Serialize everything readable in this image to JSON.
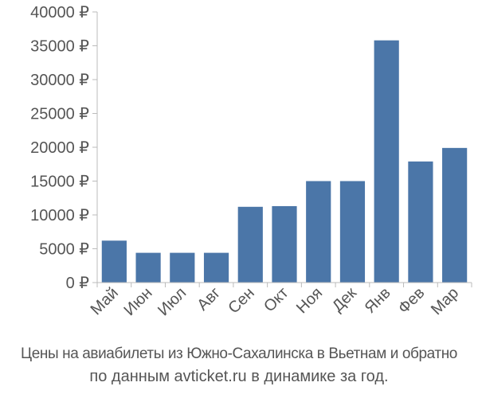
{
  "chart_data": {
    "type": "bar",
    "categories": [
      "Май",
      "Июн",
      "Июл",
      "Авг",
      "Сен",
      "Окт",
      "Ноя",
      "Дек",
      "Янв",
      "Фев",
      "Мар"
    ],
    "values": [
      6200,
      4400,
      4400,
      4400,
      11200,
      11300,
      15000,
      15000,
      35800,
      17900,
      19900
    ],
    "ylim": [
      0,
      40000
    ],
    "yticks": [
      0,
      5000,
      10000,
      15000,
      20000,
      25000,
      30000,
      35000,
      40000
    ],
    "ytick_suffix": " ₽",
    "grid": false,
    "legend": "none",
    "bar_color": "#4b76a8",
    "axis_color": "#bbbbbb"
  },
  "caption": {
    "line1": "Цены на авиабилеты из Южно-Сахалинска в Вьетнам и обратно",
    "line2": "по данным avticket.ru в динамике за год."
  }
}
